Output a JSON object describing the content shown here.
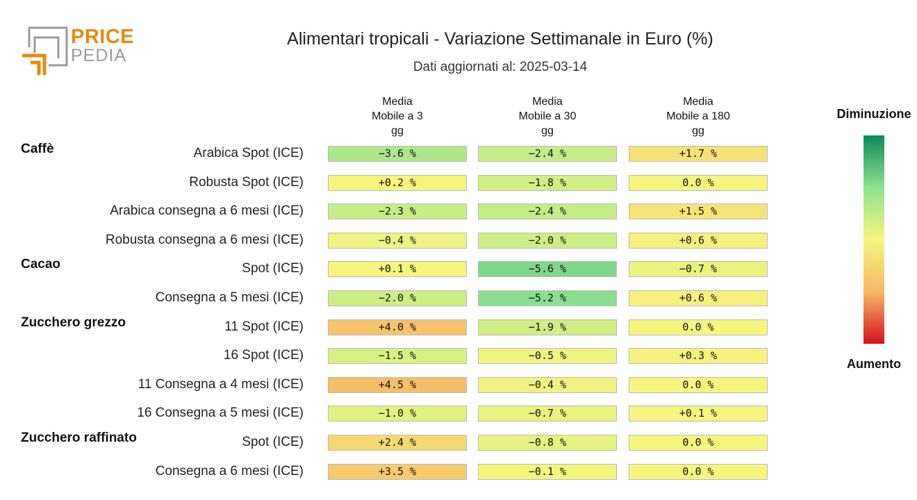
{
  "logo": {
    "line1": "PRICE",
    "line2": "PEDIA"
  },
  "chart_data": {
    "type": "table",
    "title": "Alimentari tropicali - Variazione Settimanale in Euro (%)",
    "subtitle": "Dati aggiornati al: 2025-03-14",
    "columns": [
      "Media\nMobile a 3\ngg",
      "Media\nMobile a 30\ngg",
      "Media\nMobile a 180\ngg"
    ],
    "groups": [
      {
        "name": "Caffè",
        "rows": [
          {
            "label": "Arabica Spot (ICE)",
            "values": [
              -3.6,
              -2.4,
              1.7
            ],
            "text": [
              "−3.6 %",
              "−2.4 %",
              "+1.7 %"
            ]
          },
          {
            "label": "Robusta Spot (ICE)",
            "values": [
              0.2,
              -1.8,
              0.0
            ],
            "text": [
              "+0.2 %",
              "−1.8 %",
              "0.0 %"
            ]
          },
          {
            "label": "Arabica consegna a 6 mesi (ICE)",
            "values": [
              -2.3,
              -2.4,
              1.5
            ],
            "text": [
              "−2.3 %",
              "−2.4 %",
              "+1.5 %"
            ]
          },
          {
            "label": "Robusta consegna a 6 mesi (ICE)",
            "values": [
              -0.4,
              -2.0,
              0.6
            ],
            "text": [
              "−0.4 %",
              "−2.0 %",
              "+0.6 %"
            ]
          }
        ]
      },
      {
        "name": "Cacao",
        "rows": [
          {
            "label": "Spot (ICE)",
            "values": [
              0.1,
              -5.6,
              -0.7
            ],
            "text": [
              "+0.1 %",
              "−5.6 %",
              "−0.7 %"
            ]
          },
          {
            "label": "Consegna a 5 mesi (ICE)",
            "values": [
              -2.0,
              -5.2,
              0.6
            ],
            "text": [
              "−2.0 %",
              "−5.2 %",
              "+0.6 %"
            ]
          }
        ]
      },
      {
        "name": "Zucchero grezzo",
        "rows": [
          {
            "label": "11 Spot (ICE)",
            "values": [
              4.0,
              -1.9,
              0.0
            ],
            "text": [
              "+4.0 %",
              "−1.9 %",
              "0.0 %"
            ]
          },
          {
            "label": "16 Spot (ICE)",
            "values": [
              -1.5,
              -0.5,
              0.3
            ],
            "text": [
              "−1.5 %",
              "−0.5 %",
              "+0.3 %"
            ]
          },
          {
            "label": "11 Consegna a 4 mesi (ICE)",
            "values": [
              4.5,
              -0.4,
              0.0
            ],
            "text": [
              "+4.5 %",
              "−0.4 %",
              "0.0 %"
            ]
          },
          {
            "label": "16 Consegna a 5 mesi (ICE)",
            "values": [
              -1.0,
              -0.7,
              0.1
            ],
            "text": [
              "−1.0 %",
              "−0.7 %",
              "+0.1 %"
            ]
          }
        ]
      },
      {
        "name": "Zucchero raffinato",
        "rows": [
          {
            "label": "Spot (ICE)",
            "values": [
              2.4,
              -0.8,
              0.0
            ],
            "text": [
              "+2.4 %",
              "−0.8 %",
              "0.0 %"
            ]
          },
          {
            "label": "Consegna a 6 mesi (ICE)",
            "values": [
              3.5,
              -0.1,
              0.0
            ],
            "text": [
              "+3.5 %",
              "−0.1 %",
              "0.0 %"
            ]
          }
        ]
      }
    ],
    "legend": {
      "top_label": "Diminuzione",
      "bottom_label": "Aumento"
    },
    "colors": {
      "decrease": "#0b8a5a",
      "neutral": "#f6f67e",
      "increase": "#d4101c"
    }
  }
}
